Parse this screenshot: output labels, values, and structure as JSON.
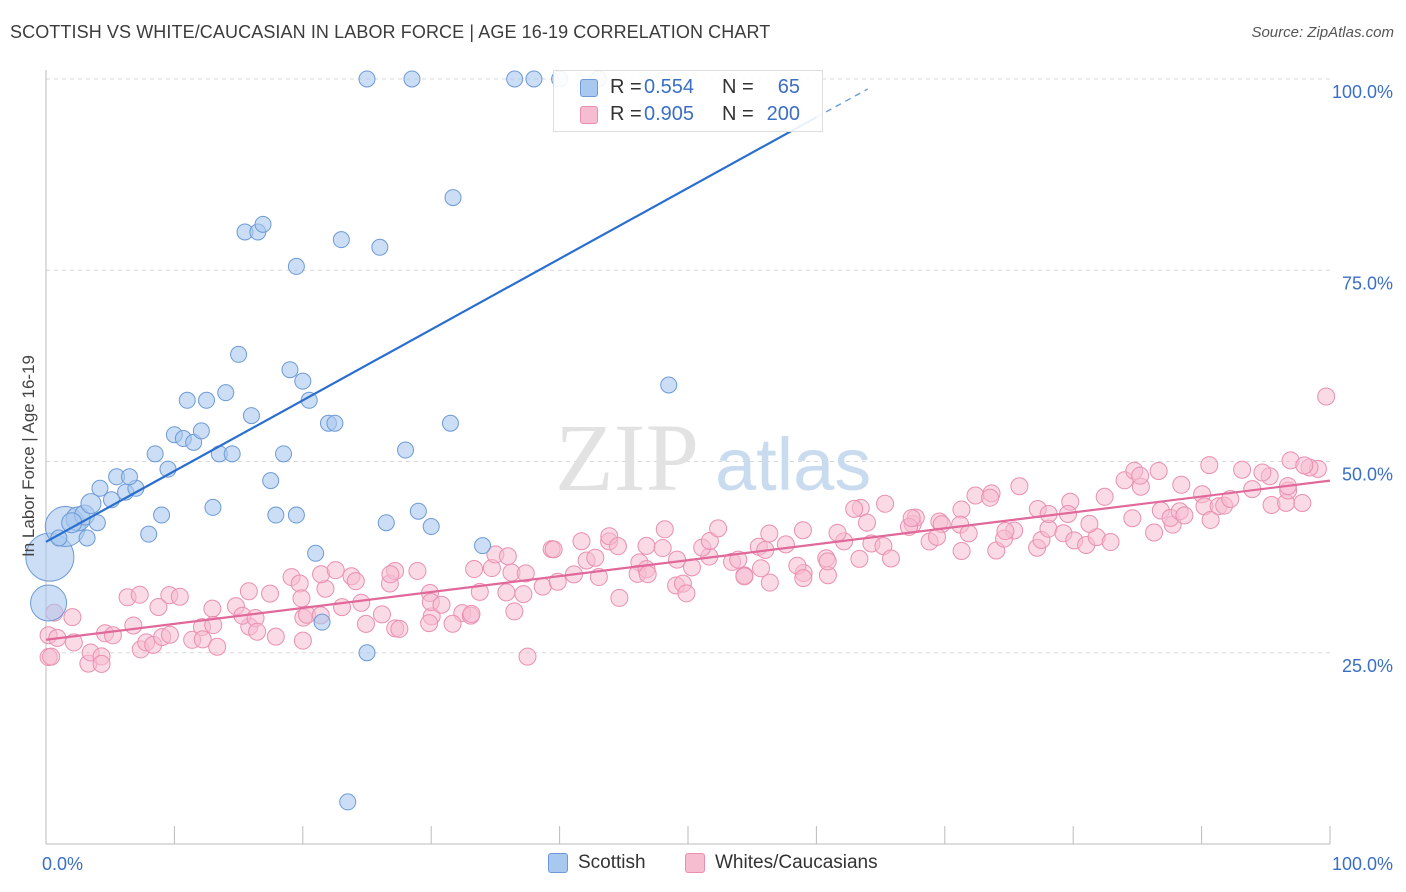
{
  "header": {
    "title": "SCOTTISH VS WHITE/CAUCASIAN IN LABOR FORCE | AGE 16-19 CORRELATION CHART",
    "source": "Source: ZipAtlas.com"
  },
  "watermark": {
    "part1": "ZIP",
    "part2": "atlas"
  },
  "colors": {
    "scottish_fill": "#a9c8ef",
    "scottish_stroke": "#6c9ad6",
    "scottish_line": "#2a6fd0",
    "white_fill": "#f6bcd0",
    "white_stroke": "#ea8fb0",
    "white_line": "#e0689a",
    "value_text": "#3a6fc4",
    "grid": "#d8d8d8"
  },
  "stats": {
    "rows": [
      {
        "r_label": "R =",
        "r_value": "0.554",
        "n_label": "N =",
        "n_value": "65"
      },
      {
        "r_label": "R =",
        "r_value": "0.905",
        "n_label": "N =",
        "n_value": "200"
      }
    ]
  },
  "legend": {
    "items": [
      "Scottish",
      "Whites/Caucasians"
    ]
  },
  "chart_data": {
    "type": "scatter",
    "ylabel": "In Labor Force | Age 16-19",
    "xlim": [
      0,
      100
    ],
    "ylim": [
      0,
      100
    ],
    "x_tick_labels": [
      "0.0%",
      "100.0%"
    ],
    "y_tick_labels": [
      "25.0%",
      "50.0%",
      "75.0%",
      "100.0%"
    ],
    "y_ticks": [
      25,
      50,
      75,
      100
    ],
    "grid": true,
    "legend_position": "bottom-center",
    "series": [
      {
        "name": "Scottish",
        "trend": {
          "x0": 0,
          "y0": 39.5,
          "x1": 60,
          "y1": 95,
          "dashed_to_x": 64,
          "dashed_to_y": 98.7
        },
        "points": [
          [
            0.3,
            37.5,
            24
          ],
          [
            0.2,
            31.5,
            18
          ],
          [
            1.5,
            41.5,
            20
          ],
          [
            2.5,
            42.5,
            12
          ],
          [
            3.0,
            43,
            10
          ],
          [
            3.5,
            44.5,
            10
          ],
          [
            4.2,
            46.5,
            8
          ],
          [
            5.1,
            45,
            8
          ],
          [
            5.5,
            48,
            8
          ],
          [
            6.2,
            46,
            8
          ],
          [
            7.0,
            46.5,
            8
          ],
          [
            8.0,
            40.5,
            8
          ],
          [
            8.5,
            51,
            8
          ],
          [
            9.0,
            43,
            8
          ],
          [
            9.5,
            49,
            8
          ],
          [
            10.0,
            53.5,
            8
          ],
          [
            10.7,
            53,
            8
          ],
          [
            11.0,
            58,
            8
          ],
          [
            11.5,
            52.5,
            8
          ],
          [
            12.1,
            54,
            8
          ],
          [
            12.5,
            58,
            8
          ],
          [
            13.0,
            44,
            8
          ],
          [
            13.5,
            51,
            8
          ],
          [
            14.0,
            59,
            8
          ],
          [
            14.5,
            51,
            8
          ],
          [
            15.0,
            64,
            8
          ],
          [
            15.5,
            80,
            8
          ],
          [
            16.0,
            56,
            8
          ],
          [
            16.5,
            80,
            8
          ],
          [
            16.9,
            81,
            8
          ],
          [
            17.5,
            47.5,
            8
          ],
          [
            17.9,
            43,
            8
          ],
          [
            18.5,
            51,
            8
          ],
          [
            19.0,
            62,
            8
          ],
          [
            19.5,
            75.5,
            8
          ],
          [
            19.5,
            43,
            8
          ],
          [
            20.0,
            60.5,
            8
          ],
          [
            20.5,
            58,
            8
          ],
          [
            21.0,
            38,
            8
          ],
          [
            21.5,
            29,
            8
          ],
          [
            22.0,
            55,
            8
          ],
          [
            22.5,
            55,
            8
          ],
          [
            23.0,
            79,
            8
          ],
          [
            23.5,
            5.5,
            8
          ],
          [
            25.0,
            100,
            8
          ],
          [
            25.0,
            25,
            8
          ],
          [
            26.0,
            78,
            8
          ],
          [
            26.5,
            42,
            8
          ],
          [
            28.0,
            51.5,
            8
          ],
          [
            29.0,
            43.5,
            8
          ],
          [
            30.0,
            41.5,
            8
          ],
          [
            28.5,
            100,
            8
          ],
          [
            31.5,
            55,
            8
          ],
          [
            31.7,
            84.5,
            8
          ],
          [
            34.0,
            39,
            8
          ],
          [
            36.5,
            100,
            8
          ],
          [
            38.0,
            100,
            8
          ],
          [
            40.0,
            100,
            8
          ],
          [
            43.0,
            100,
            8
          ],
          [
            48.5,
            60,
            8
          ],
          [
            4.0,
            42,
            8
          ],
          [
            2.0,
            42,
            10
          ],
          [
            3.2,
            40,
            8
          ],
          [
            1.0,
            40,
            8
          ],
          [
            6.5,
            48,
            8
          ]
        ]
      },
      {
        "name": "Whites/Caucasians",
        "trend": {
          "x0": 0,
          "y0": 26.7,
          "x1": 100,
          "y1": 47.5
        }
      }
    ]
  }
}
